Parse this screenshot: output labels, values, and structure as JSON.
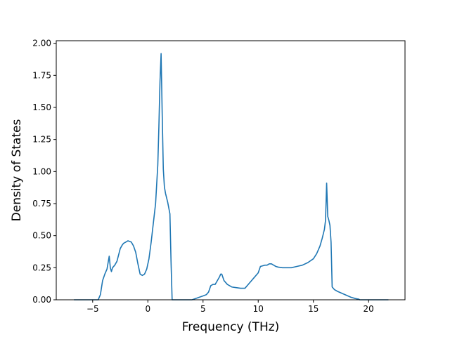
{
  "chart_data": {
    "type": "line",
    "xlabel": "Frequency (THz)",
    "ylabel": "Density of States",
    "xlim": [
      -8.3,
      23.3
    ],
    "ylim": [
      0,
      2.02
    ],
    "xticks": [
      -5,
      0,
      5,
      10,
      15,
      20
    ],
    "xtick_labels": [
      "−5",
      "0",
      "5",
      "10",
      "15",
      "20"
    ],
    "yticks": [
      0,
      0.25,
      0.5,
      0.75,
      1.0,
      1.25,
      1.5,
      1.75,
      2.0
    ],
    "ytick_labels": [
      "0.00",
      "0.25",
      "0.50",
      "0.75",
      "1.00",
      "1.25",
      "1.50",
      "1.75",
      "2.00"
    ],
    "grid": false,
    "line_color": "#1f77b4",
    "series": [
      {
        "x": [
          -6.7,
          -4.5,
          -4.3,
          -4.1,
          -3.9,
          -3.7,
          -3.5,
          -3.4,
          -3.3,
          -3.2,
          -3.0,
          -2.8,
          -2.5,
          -2.3,
          -2.2,
          -2.0,
          -1.8,
          -1.5,
          -1.3,
          -1.1,
          -0.9,
          -0.7,
          -0.5,
          -0.3,
          -0.1,
          0.1,
          0.3,
          0.5,
          0.7,
          0.8,
          0.9,
          1.0,
          1.1,
          1.2,
          1.3,
          1.4,
          1.5,
          1.6,
          1.8,
          2.0,
          2.1,
          2.2,
          2.3,
          2.5,
          4.0,
          5.0,
          5.3,
          5.5,
          5.7,
          5.9,
          6.1,
          6.3,
          6.5,
          6.6,
          6.7,
          6.9,
          7.2,
          7.6,
          8.0,
          8.4,
          8.8,
          9.2,
          9.6,
          10.0,
          10.2,
          10.4,
          10.6,
          10.8,
          11.0,
          11.2,
          11.4,
          11.6,
          11.8,
          12.2,
          12.6,
          13.0,
          13.5,
          14.0,
          14.5,
          15.0,
          15.3,
          15.6,
          15.8,
          16.0,
          16.1,
          16.2,
          16.3,
          16.4,
          16.5,
          16.6,
          16.7,
          16.9,
          17.2,
          17.6,
          18.0,
          18.4,
          18.8,
          19.1,
          19.2,
          19.4,
          21.8
        ],
        "y": [
          0.0,
          0.0,
          0.04,
          0.15,
          0.2,
          0.24,
          0.34,
          0.25,
          0.22,
          0.25,
          0.27,
          0.3,
          0.4,
          0.43,
          0.44,
          0.45,
          0.46,
          0.45,
          0.42,
          0.37,
          0.28,
          0.2,
          0.19,
          0.2,
          0.24,
          0.32,
          0.45,
          0.6,
          0.75,
          0.9,
          1.05,
          1.35,
          1.7,
          1.92,
          1.45,
          1.02,
          0.88,
          0.83,
          0.76,
          0.67,
          0.3,
          0.0,
          0.0,
          0.0,
          0.0,
          0.03,
          0.04,
          0.06,
          0.11,
          0.12,
          0.12,
          0.15,
          0.18,
          0.2,
          0.2,
          0.15,
          0.12,
          0.1,
          0.095,
          0.09,
          0.09,
          0.13,
          0.17,
          0.21,
          0.26,
          0.265,
          0.27,
          0.27,
          0.28,
          0.28,
          0.27,
          0.26,
          0.255,
          0.25,
          0.25,
          0.25,
          0.26,
          0.27,
          0.29,
          0.32,
          0.36,
          0.42,
          0.48,
          0.55,
          0.62,
          0.91,
          0.65,
          0.62,
          0.58,
          0.45,
          0.1,
          0.08,
          0.065,
          0.05,
          0.035,
          0.02,
          0.01,
          0.005,
          0.0,
          0.0,
          0.0
        ]
      }
    ]
  }
}
